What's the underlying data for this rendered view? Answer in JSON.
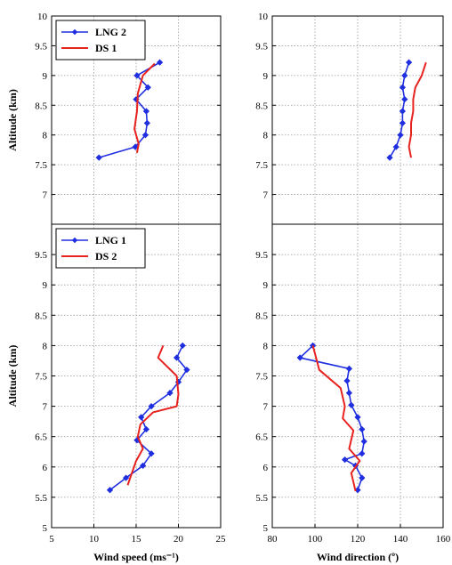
{
  "colors": {
    "lng": "#1f2fe0",
    "ds": "#e8221f",
    "grid": "#9a9a9a",
    "axis": "#000000"
  },
  "chart_data": [
    {
      "type": "line",
      "id": "top-left",
      "xlabel": "",
      "ylabel": "Altitude (km)",
      "xlim": [
        5,
        25
      ],
      "ylim": [
        6.5,
        10
      ],
      "yticks": [
        "10",
        "9.5",
        "9",
        "8.5",
        "8",
        "7.5",
        "7",
        ""
      ],
      "yticks_values": [
        10,
        9.5,
        9,
        8.5,
        8,
        7.5,
        7,
        6.5
      ],
      "xticks": [],
      "grid": true,
      "legend": "top-left",
      "series": [
        {
          "name": "LNG 2",
          "marker": "diamond",
          "colorKey": "lng",
          "points": [
            [
              17.8,
              9.22
            ],
            [
              15.1,
              9.0
            ],
            [
              16.4,
              8.8
            ],
            [
              15.0,
              8.6
            ],
            [
              16.2,
              8.4
            ],
            [
              16.3,
              8.2
            ],
            [
              16.1,
              8.0
            ],
            [
              14.9,
              7.8
            ],
            [
              10.6,
              7.62
            ]
          ]
        },
        {
          "name": "DS 1",
          "marker": "none",
          "colorKey": "ds",
          "points": [
            [
              17.2,
              9.2
            ],
            [
              15.8,
              9.0
            ],
            [
              15.2,
              8.7
            ],
            [
              15.1,
              8.4
            ],
            [
              14.8,
              8.1
            ],
            [
              15.3,
              7.85
            ],
            [
              15.1,
              7.7
            ]
          ]
        }
      ]
    },
    {
      "type": "line",
      "id": "top-right",
      "xlabel": "",
      "ylabel": "",
      "xlim": [
        80,
        160
      ],
      "ylim": [
        6.5,
        10
      ],
      "yticks": [
        "10",
        "9.5",
        "9",
        "8.5",
        "8",
        "7.5",
        "7",
        ""
      ],
      "yticks_values": [
        10,
        9.5,
        9,
        8.5,
        8,
        7.5,
        7,
        6.5
      ],
      "xticks": [],
      "grid": true,
      "legend": "none",
      "series": [
        {
          "name": "",
          "marker": "diamond",
          "colorKey": "lng",
          "points": [
            [
              144,
              9.22
            ],
            [
              142,
              9.0
            ],
            [
              141,
              8.8
            ],
            [
              142,
              8.6
            ],
            [
              141,
              8.4
            ],
            [
              141,
              8.2
            ],
            [
              140,
              8.0
            ],
            [
              138,
              7.8
            ],
            [
              135,
              7.62
            ]
          ]
        },
        {
          "name": "",
          "marker": "none",
          "colorKey": "ds",
          "points": [
            [
              152,
              9.22
            ],
            [
              150,
              9.0
            ],
            [
              147,
              8.8
            ],
            [
              146,
              8.6
            ],
            [
              146,
              8.4
            ],
            [
              145,
              8.2
            ],
            [
              145,
              8.0
            ],
            [
              144,
              7.8
            ],
            [
              145,
              7.62
            ]
          ]
        }
      ]
    },
    {
      "type": "line",
      "id": "bottom-left",
      "xlabel": "Wind speed (ms⁻¹)",
      "ylabel": "Altitude (km)",
      "xlim": [
        5,
        25
      ],
      "ylim": [
        5,
        10
      ],
      "yticks": [
        "",
        "9.5",
        "9",
        "8.5",
        "8",
        "7.5",
        "7",
        "6.5",
        "6",
        "5.5",
        "5"
      ],
      "yticks_values": [
        10,
        9.5,
        9,
        8.5,
        8,
        7.5,
        7,
        6.5,
        6,
        5.5,
        5
      ],
      "xticks": [
        "5",
        "10",
        "15",
        "20",
        "25"
      ],
      "xticks_values": [
        5,
        10,
        15,
        20,
        25
      ],
      "grid": true,
      "legend": "top-left",
      "series": [
        {
          "name": "LNG 1",
          "marker": "diamond",
          "colorKey": "lng",
          "points": [
            [
              20.5,
              8.0
            ],
            [
              19.8,
              7.8
            ],
            [
              21.0,
              7.6
            ],
            [
              20.0,
              7.4
            ],
            [
              19.0,
              7.22
            ],
            [
              16.8,
              7.0
            ],
            [
              15.6,
              6.82
            ],
            [
              16.2,
              6.62
            ],
            [
              15.1,
              6.44
            ],
            [
              16.8,
              6.22
            ],
            [
              15.8,
              6.02
            ],
            [
              13.8,
              5.82
            ],
            [
              11.9,
              5.62
            ]
          ]
        },
        {
          "name": "DS 2",
          "marker": "none",
          "colorKey": "ds",
          "points": [
            [
              18.2,
              8.0
            ],
            [
              17.6,
              7.8
            ],
            [
              19.8,
              7.5
            ],
            [
              20.0,
              7.2
            ],
            [
              19.8,
              7.0
            ],
            [
              17.0,
              6.9
            ],
            [
              15.5,
              6.7
            ],
            [
              15.2,
              6.5
            ],
            [
              15.8,
              6.3
            ],
            [
              15.0,
              6.1
            ],
            [
              14.5,
              5.9
            ],
            [
              14.0,
              5.7
            ]
          ]
        }
      ]
    },
    {
      "type": "line",
      "id": "bottom-right",
      "xlabel": "Wind direction (º)",
      "ylabel": "",
      "xlim": [
        80,
        160
      ],
      "ylim": [
        5,
        10
      ],
      "yticks": [
        "",
        "9.5",
        "9",
        "8.5",
        "8",
        "7.5",
        "7",
        "6.5",
        "6",
        "5.5",
        "5"
      ],
      "yticks_values": [
        10,
        9.5,
        9,
        8.5,
        8,
        7.5,
        7,
        6.5,
        6,
        5.5,
        5
      ],
      "xticks": [
        "80",
        "100",
        "120",
        "140",
        "160"
      ],
      "xticks_values": [
        80,
        100,
        120,
        140,
        160
      ],
      "grid": true,
      "legend": "none",
      "series": [
        {
          "name": "",
          "marker": "diamond",
          "colorKey": "lng",
          "points": [
            [
              99,
              8.0
            ],
            [
              93,
              7.8
            ],
            [
              116,
              7.62
            ],
            [
              115,
              7.42
            ],
            [
              116,
              7.22
            ],
            [
              117,
              7.02
            ],
            [
              120,
              6.82
            ],
            [
              122,
              6.62
            ],
            [
              123,
              6.42
            ],
            [
              122,
              6.22
            ],
            [
              114,
              6.12
            ],
            [
              119,
              6.02
            ],
            [
              122,
              5.82
            ],
            [
              120,
              5.62
            ]
          ]
        },
        {
          "name": "",
          "marker": "none",
          "colorKey": "ds",
          "points": [
            [
              99,
              8.0
            ],
            [
              102,
              7.6
            ],
            [
              112,
              7.3
            ],
            [
              114,
              7.0
            ],
            [
              113,
              6.8
            ],
            [
              118,
              6.6
            ],
            [
              116,
              6.3
            ],
            [
              121,
              6.1
            ],
            [
              117,
              5.9
            ],
            [
              119,
              5.6
            ]
          ]
        }
      ]
    }
  ]
}
